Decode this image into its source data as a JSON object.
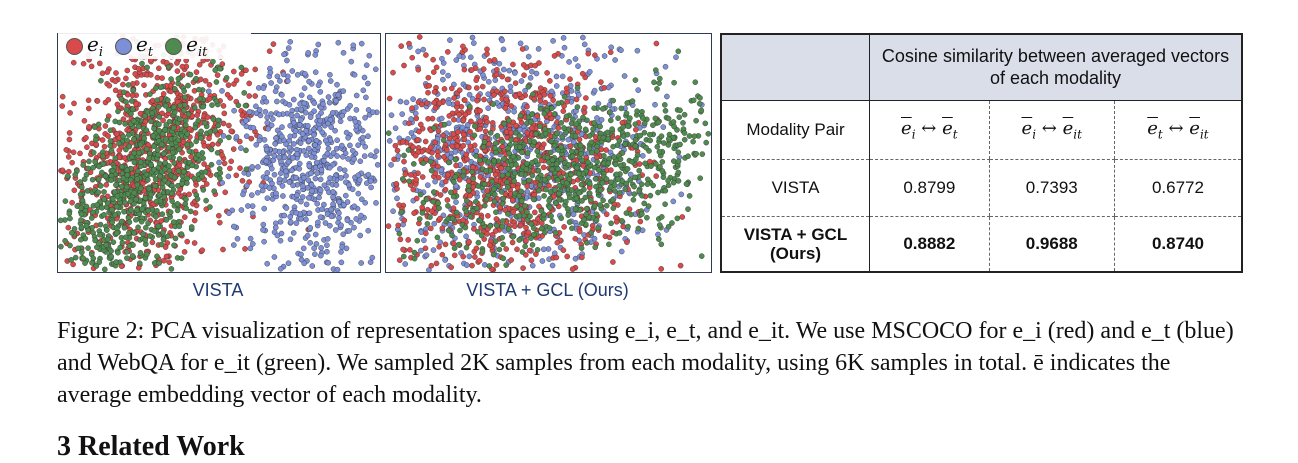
{
  "legend": {
    "items": [
      {
        "symbol": "e",
        "sub": "i",
        "color": "#d94a4a"
      },
      {
        "symbol": "e",
        "sub": "t",
        "color": "#7d8fd6"
      },
      {
        "symbol": "e",
        "sub": "it",
        "color": "#4f8a4f"
      }
    ]
  },
  "panels": {
    "left_label": "VISTA",
    "right_label": "VISTA + GCL (Ours)"
  },
  "table": {
    "header": "Cosine similarity between averaged vectors of each modality",
    "pair_label": "Modality Pair",
    "pairs": [
      {
        "a": "e",
        "a_sub": "i",
        "b": "e",
        "b_sub": "t"
      },
      {
        "a": "e",
        "a_sub": "i",
        "b": "e",
        "b_sub": "it"
      },
      {
        "a": "e",
        "a_sub": "t",
        "b": "e",
        "b_sub": "it"
      }
    ],
    "arrow": "↔",
    "rows": [
      {
        "name": "VISTA",
        "values": [
          "0.8799",
          "0.7393",
          "0.6772"
        ]
      },
      {
        "name": "VISTA + GCL (Ours)",
        "values": [
          "0.8882",
          "0.9688",
          "0.8740"
        ]
      }
    ]
  },
  "caption": "Figure 2: PCA visualization of representation spaces using e_i, e_t, and e_it. We use MSCOCO for e_i (red) and e_t (blue) and WebQA for e_it (green). We sampled 2K samples from each modality, using 6K samples in total. ē indicates the average embedding vector of each modality.",
  "section_heading": "3 Related Work",
  "colors": {
    "red": "#d94a4a",
    "blue": "#7d8fd6",
    "green": "#4f8a4f",
    "header_bg": "#d9dee8",
    "panel_label": "#1f3a73"
  }
}
